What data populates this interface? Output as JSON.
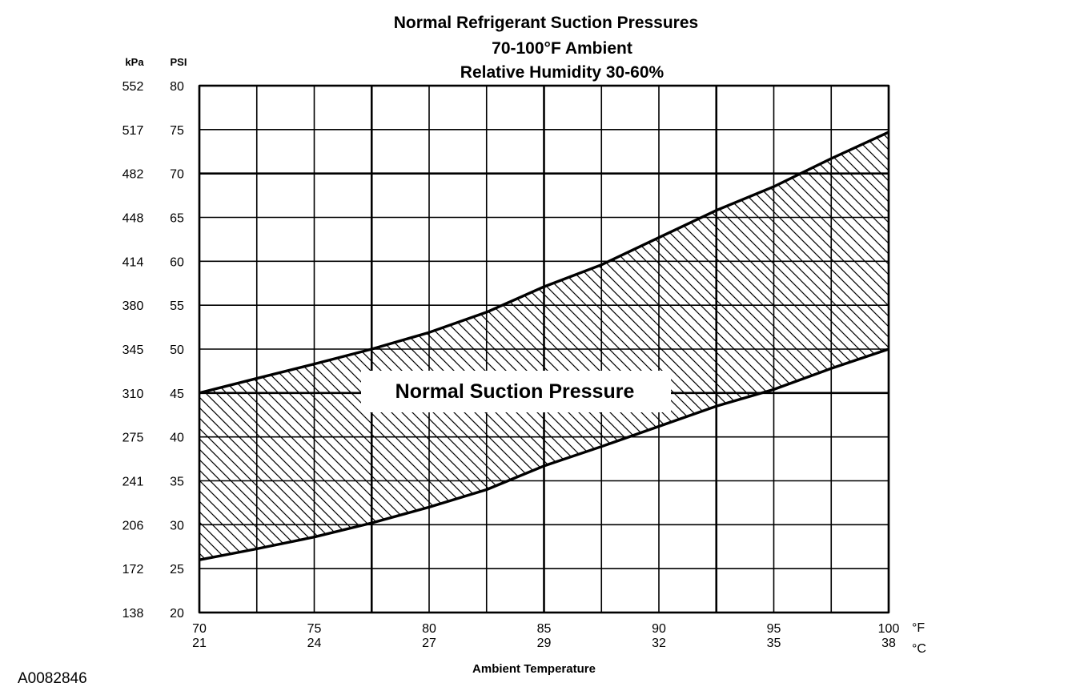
{
  "figure_id": "A0082846",
  "chart_data": {
    "type": "area",
    "title_lines": [
      "Normal  Refrigerant  Suction  Pressures",
      "70-100°F Ambient",
      "Relative Humidity 30-60%"
    ],
    "xlabel": "Ambient Temperature",
    "x_unit_primary": "°F",
    "x_unit_secondary": "°C",
    "y_unit_left": "kPa",
    "y_unit_right": "PSI",
    "xlim": [
      70,
      100
    ],
    "ylim": [
      20,
      80
    ],
    "x_tick_labels_f": [
      "70",
      "75",
      "80",
      "85",
      "90",
      "95",
      "100"
    ],
    "x_tick_labels_c": [
      "21",
      "24",
      "27",
      "29",
      "32",
      "35",
      "38"
    ],
    "y_tick_labels_psi": [
      "80",
      "75",
      "70",
      "65",
      "60",
      "55",
      "50",
      "45",
      "40",
      "35",
      "30",
      "25",
      "20"
    ],
    "y_tick_labels_kpa": [
      "552",
      "517",
      "482",
      "448",
      "414",
      "380",
      "345",
      "310",
      "275",
      "241",
      "206",
      "172",
      "138"
    ],
    "grid": true,
    "band_label": "Normal Suction Pressure",
    "series": [
      {
        "name": "upper",
        "x": [
          70,
          72.4,
          75,
          77.5,
          80,
          82.5,
          85,
          87.5,
          90,
          92.5,
          95,
          97.5,
          100
        ],
        "y": [
          45,
          46.6,
          48.3,
          50,
          51.9,
          54.2,
          57.1,
          59.6,
          62.7,
          65.8,
          68.5,
          71.7,
          74.7
        ]
      },
      {
        "name": "lower",
        "x": [
          70,
          72.4,
          75,
          77.5,
          80,
          82.5,
          85,
          87.5,
          90,
          92.5,
          95,
          97.5,
          100
        ],
        "y": [
          26,
          27.2,
          28.6,
          30.2,
          32,
          34,
          36.7,
          38.9,
          41.2,
          43.5,
          45.4,
          47.8,
          50
        ]
      }
    ]
  }
}
